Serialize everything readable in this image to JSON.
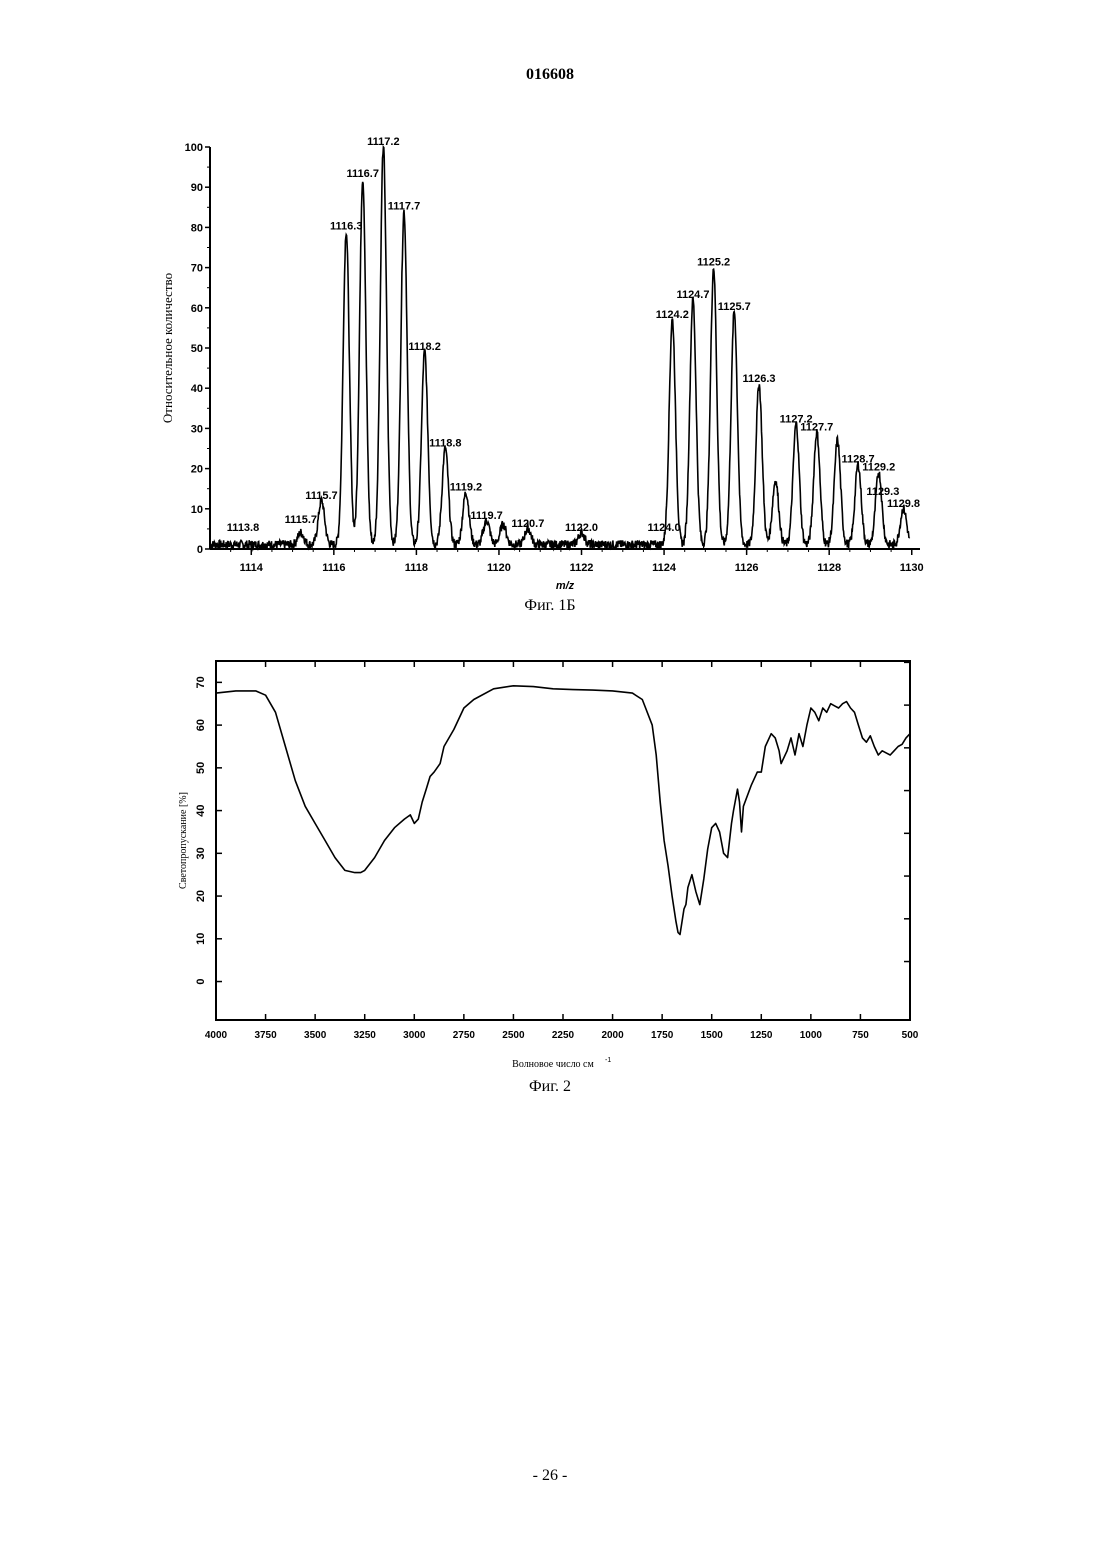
{
  "document": {
    "number": "016608",
    "page_label": "- 26 -"
  },
  "chart_data": [
    {
      "type": "line",
      "caption": "Фиг. 1Б",
      "title": "",
      "xlabel": "m/z",
      "ylabel": "Относительное количество",
      "xlim": [
        1113,
        1130.2
      ],
      "ylim": [
        0,
        100
      ],
      "x_ticks": [
        1114,
        1116,
        1118,
        1120,
        1122,
        1124,
        1126,
        1128,
        1130
      ],
      "y_ticks": [
        0,
        10,
        20,
        30,
        40,
        50,
        60,
        70,
        80,
        90,
        100
      ],
      "grid": false,
      "series": [
        {
          "x": [
            1115.2,
            1115.7,
            1116.3,
            1116.7,
            1117.2,
            1117.7,
            1118.2,
            1118.7,
            1119.2,
            1119.7,
            1120.1,
            1120.7,
            1122.0,
            1124.2,
            1124.7,
            1125.2,
            1125.7,
            1126.3,
            1126.7,
            1127.2,
            1127.7,
            1128.2,
            1128.7,
            1129.2,
            1129.8
          ],
          "values": [
            3,
            11,
            78,
            91,
            99,
            83,
            48,
            24,
            13,
            6,
            5,
            4,
            3,
            56,
            61,
            69,
            58,
            40,
            16,
            30,
            28,
            26,
            20,
            18,
            9
          ]
        }
      ],
      "peak_labels": [
        {
          "text": "1113.8",
          "x": 1113.8,
          "y": 3
        },
        {
          "text": "1115.7",
          "x": 1115.2,
          "y": 5
        },
        {
          "text": "1115.7",
          "x": 1115.7,
          "y": 11
        },
        {
          "text": "1116.3",
          "x": 1116.3,
          "y": 78
        },
        {
          "text": "1116.7",
          "x": 1116.7,
          "y": 91
        },
        {
          "text": "1117.2",
          "x": 1117.2,
          "y": 99
        },
        {
          "text": "1117.7",
          "x": 1117.7,
          "y": 83
        },
        {
          "text": "1118.2",
          "x": 1118.2,
          "y": 48
        },
        {
          "text": "1118.8",
          "x": 1118.7,
          "y": 24
        },
        {
          "text": "1119.2",
          "x": 1119.2,
          "y": 13
        },
        {
          "text": "1119.7",
          "x": 1119.7,
          "y": 6
        },
        {
          "text": "1120.7",
          "x": 1120.7,
          "y": 4
        },
        {
          "text": "1122.0",
          "x": 1122.0,
          "y": 3
        },
        {
          "text": "1124.0",
          "x": 1124.0,
          "y": 3
        },
        {
          "text": "1124.2",
          "x": 1124.2,
          "y": 56
        },
        {
          "text": "1124.7",
          "x": 1124.7,
          "y": 61
        },
        {
          "text": "1125.2",
          "x": 1125.2,
          "y": 69
        },
        {
          "text": "1125.7",
          "x": 1125.7,
          "y": 58
        },
        {
          "text": "1126.3",
          "x": 1126.3,
          "y": 40
        },
        {
          "text": "1127.2",
          "x": 1127.2,
          "y": 30
        },
        {
          "text": "1127.7",
          "x": 1127.7,
          "y": 28
        },
        {
          "text": "1128.7",
          "x": 1128.7,
          "y": 20
        },
        {
          "text": "1129.2",
          "x": 1129.2,
          "y": 18
        },
        {
          "text": "1129.3",
          "x": 1129.3,
          "y": 12
        },
        {
          "text": "1129.8",
          "x": 1129.8,
          "y": 9
        }
      ]
    },
    {
      "type": "line",
      "caption": "Фиг. 2",
      "title": "",
      "xlabel": "Волновое число см",
      "xlabel_sup": "-1",
      "ylabel": "Светопропускание [%]",
      "xlim": [
        4000,
        500
      ],
      "ylim": [
        -9,
        75
      ],
      "x_ticks": [
        4000,
        3750,
        3500,
        3250,
        3000,
        2750,
        2500,
        2250,
        2000,
        1750,
        1500,
        1250,
        1000,
        750,
        500
      ],
      "x_tick_labels": [
        "4000",
        "3750",
        "3500",
        "3250",
        "3000",
        "2750",
        "2500",
        "2250",
        "2000",
        "1750",
        "1500",
        "1250",
        "1000",
        "750",
        "500"
      ],
      "y_ticks": [
        0,
        10,
        20,
        30,
        40,
        50,
        60,
        70
      ],
      "grid": false,
      "series": [
        {
          "x": [
            4000,
            3900,
            3800,
            3750,
            3700,
            3650,
            3600,
            3550,
            3500,
            3450,
            3400,
            3350,
            3300,
            3270,
            3250,
            3200,
            3150,
            3100,
            3050,
            3020,
            3000,
            2980,
            2960,
            2940,
            2920,
            2900,
            2870,
            2850,
            2800,
            2750,
            2700,
            2600,
            2500,
            2400,
            2300,
            2200,
            2100,
            2000,
            1900,
            1850,
            1800,
            1780,
            1760,
            1740,
            1720,
            1700,
            1680,
            1670,
            1660,
            1650,
            1640,
            1630,
            1620,
            1600,
            1580,
            1560,
            1540,
            1520,
            1500,
            1480,
            1460,
            1440,
            1420,
            1400,
            1390,
            1370,
            1360,
            1350,
            1340,
            1300,
            1270,
            1250,
            1230,
            1200,
            1180,
            1160,
            1150,
            1120,
            1100,
            1080,
            1060,
            1040,
            1020,
            1000,
            980,
            960,
            940,
            920,
            900,
            880,
            860,
            840,
            820,
            800,
            780,
            760,
            740,
            720,
            700,
            680,
            660,
            640,
            620,
            600,
            580,
            560,
            540,
            520,
            500
          ],
          "values": [
            67.5,
            68,
            68,
            67,
            63,
            55,
            47,
            41,
            37,
            33,
            29,
            26,
            25.5,
            25.5,
            26,
            29,
            33,
            36,
            38,
            39,
            37,
            38,
            42,
            45,
            48,
            49,
            51,
            55,
            59,
            64,
            66,
            68.5,
            69.2,
            69,
            68.5,
            68.3,
            68.2,
            68,
            67.5,
            66,
            60,
            53,
            42,
            33,
            27,
            20,
            14,
            11.5,
            11,
            14,
            17,
            18,
            22,
            25,
            21,
            18,
            24,
            31,
            36,
            37,
            35,
            30,
            29,
            37,
            40,
            45,
            42,
            35,
            41,
            46,
            49,
            49,
            55,
            58,
            57,
            54,
            51,
            54,
            57,
            53,
            58,
            55,
            60,
            64,
            63,
            61,
            64,
            63,
            65,
            64.5,
            64,
            65,
            65.5,
            64,
            63,
            60,
            57,
            56,
            57.5,
            55,
            53,
            54,
            53.5,
            53,
            54,
            55,
            55.5,
            57,
            58
          ],
          "extra_points": []
        }
      ]
    }
  ]
}
